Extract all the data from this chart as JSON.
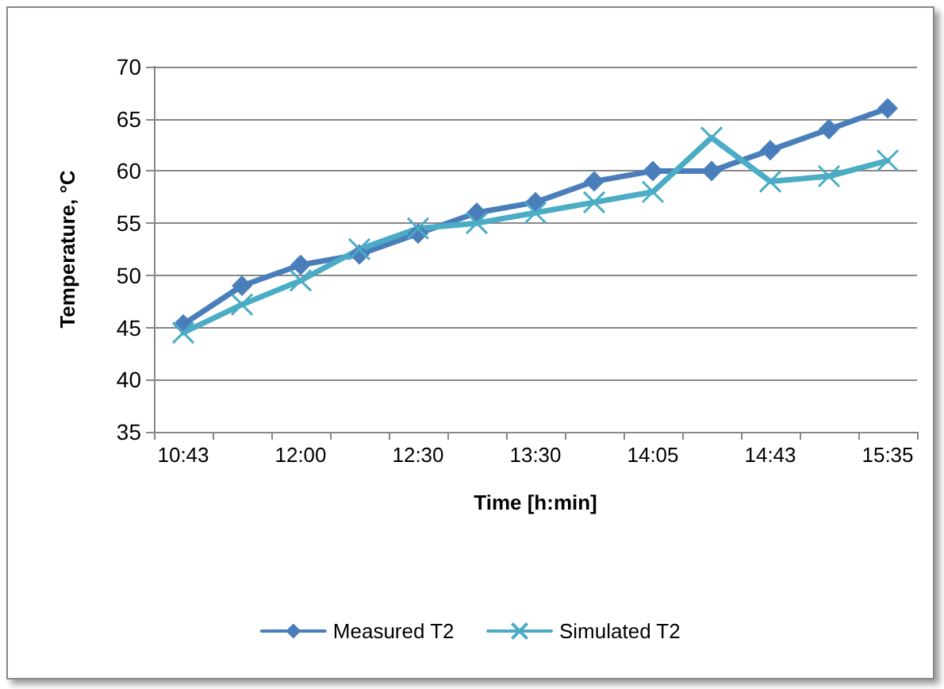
{
  "chart_data": {
    "type": "line",
    "xlabel": "Time [h:min]",
    "ylabel": "Temperature, °C",
    "categories": [
      "10:43",
      null,
      "12:00",
      null,
      "12:30",
      null,
      "13:30",
      null,
      "14:05",
      null,
      "14:43",
      null,
      "15:35"
    ],
    "series": [
      {
        "name": "Measured T2",
        "color": "#4a7ebb",
        "marker": "diamond",
        "values": [
          45.3,
          49,
          51,
          52,
          54,
          56,
          57,
          59,
          60,
          60,
          62,
          64,
          66
        ]
      },
      {
        "name": "Simulated T2",
        "color": "#4bacc6",
        "marker": "cross",
        "values": [
          44.5,
          47.2,
          49.5,
          52.5,
          54.5,
          55,
          56,
          57,
          58,
          63.2,
          59,
          59.5,
          61
        ]
      }
    ],
    "ylim": [
      35,
      70
    ],
    "yticks": [
      35,
      40,
      45,
      50,
      55,
      60,
      65,
      70
    ],
    "grid": "y",
    "legend": "bottom",
    "line_style": "solid"
  }
}
